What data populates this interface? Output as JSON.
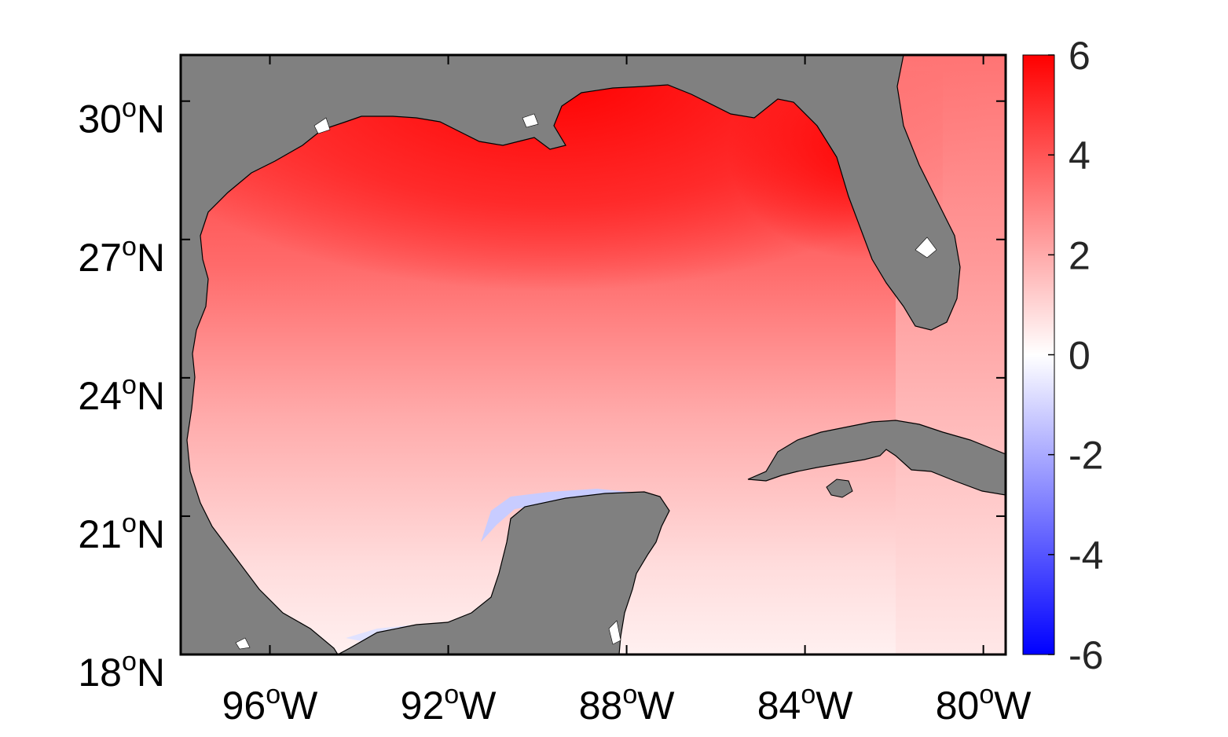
{
  "map": {
    "projection": "equirectangular",
    "extent": {
      "lon": [
        -98,
        -79.5
      ],
      "lat": [
        18,
        31
      ]
    },
    "land_color": "#808080",
    "coast_color": "#000000",
    "colormap": {
      "low": "#0000ff",
      "mid": "#ffffff",
      "high": "#ff0000"
    },
    "lon_ticks": [
      {
        "value": -96,
        "num": "96",
        "sup": "o",
        "hem": "W"
      },
      {
        "value": -92,
        "num": "92",
        "sup": "o",
        "hem": "W"
      },
      {
        "value": -88,
        "num": "88",
        "sup": "o",
        "hem": "W"
      },
      {
        "value": -84,
        "num": "84",
        "sup": "o",
        "hem": "W"
      },
      {
        "value": -80,
        "num": "80",
        "sup": "o",
        "hem": "W"
      }
    ],
    "lat_ticks": [
      {
        "value": 30,
        "num": "30",
        "sup": "o",
        "hem": "N"
      },
      {
        "value": 27,
        "num": "27",
        "sup": "o",
        "hem": "N"
      },
      {
        "value": 24,
        "num": "24",
        "sup": "o",
        "hem": "N"
      },
      {
        "value": 21,
        "num": "21",
        "sup": "o",
        "hem": "N"
      },
      {
        "value": 18,
        "num": "18",
        "sup": "o",
        "hem": "N"
      }
    ]
  },
  "colorbar": {
    "range": [
      -6,
      6
    ],
    "ticks": [
      "6",
      "4",
      "2",
      "0",
      "-2",
      "-4",
      "-6"
    ]
  }
}
